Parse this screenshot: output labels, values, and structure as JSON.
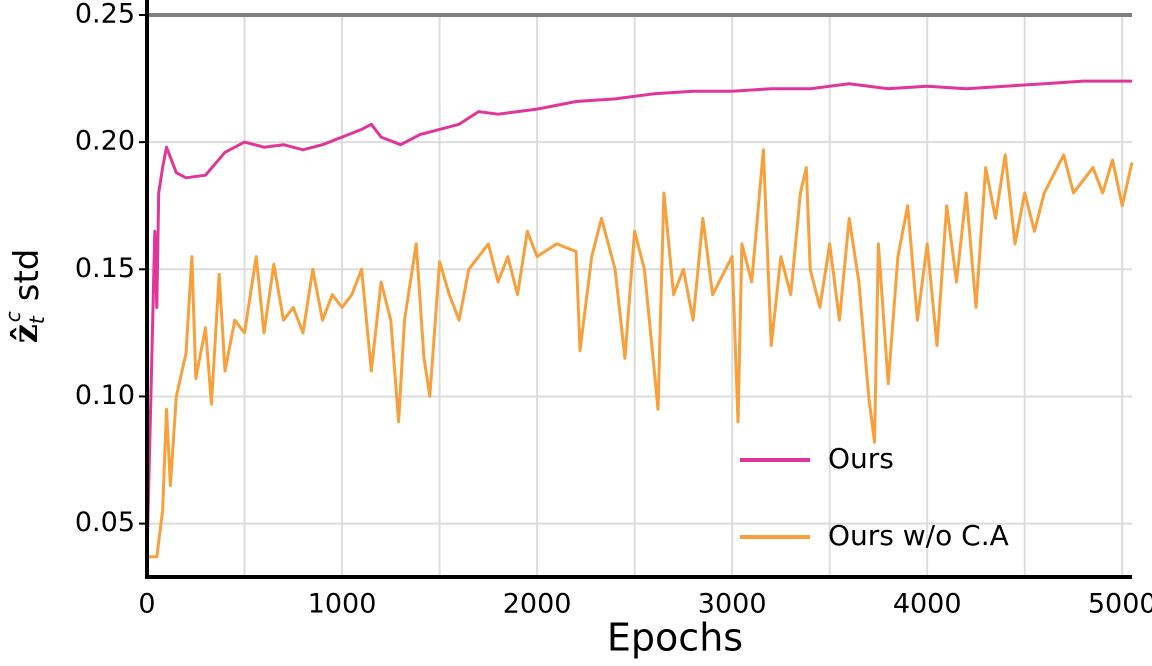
{
  "chart_data": {
    "type": "line",
    "x_label": "Epochs",
    "y_label": {
      "symbol": "ẑ",
      "sub": "t",
      "sup": "c",
      "text": "std"
    },
    "xlim": [
      0,
      5050
    ],
    "ylim": [
      0.029,
      0.25
    ],
    "xticks": [
      0,
      1000,
      2000,
      3000,
      4000,
      5000
    ],
    "x_minor_ticks": [
      500,
      1500,
      2500,
      3500,
      4500
    ],
    "yticks": [
      0.05,
      0.1,
      0.15,
      0.2,
      0.25
    ],
    "ytick_labels": [
      "0.05",
      "0.10",
      "0.15",
      "0.20",
      "0.25"
    ],
    "grid": true,
    "hline": {
      "value": 0.25,
      "color": "#808080"
    },
    "legend": "lower right",
    "series": [
      {
        "name": "Ours",
        "color": "#e0369a",
        "x": [
          0,
          20,
          40,
          50,
          60,
          80,
          100,
          150,
          200,
          300,
          400,
          500,
          600,
          700,
          800,
          900,
          1000,
          1100,
          1150,
          1200,
          1300,
          1400,
          1500,
          1600,
          1700,
          1800,
          1900,
          2000,
          2200,
          2400,
          2600,
          2800,
          3000,
          3200,
          3400,
          3600,
          3800,
          4000,
          4200,
          4400,
          4600,
          4800,
          5000,
          5050
        ],
        "values": [
          0.037,
          0.1,
          0.165,
          0.135,
          0.18,
          0.19,
          0.198,
          0.188,
          0.186,
          0.187,
          0.196,
          0.2,
          0.198,
          0.199,
          0.197,
          0.199,
          0.202,
          0.205,
          0.207,
          0.202,
          0.199,
          0.203,
          0.205,
          0.207,
          0.212,
          0.211,
          0.212,
          0.213,
          0.216,
          0.217,
          0.219,
          0.22,
          0.22,
          0.221,
          0.221,
          0.223,
          0.221,
          0.222,
          0.221,
          0.222,
          0.223,
          0.224,
          0.224,
          0.224
        ]
      },
      {
        "name": "Ours w/o C.A",
        "color": "#f7a03c",
        "x": [
          0,
          50,
          80,
          100,
          120,
          150,
          200,
          230,
          250,
          300,
          330,
          370,
          400,
          450,
          500,
          560,
          600,
          650,
          700,
          750,
          800,
          850,
          900,
          950,
          1000,
          1050,
          1100,
          1150,
          1200,
          1250,
          1290,
          1320,
          1380,
          1420,
          1450,
          1500,
          1550,
          1600,
          1650,
          1700,
          1750,
          1800,
          1850,
          1900,
          1950,
          2000,
          2100,
          2200,
          2220,
          2280,
          2330,
          2400,
          2450,
          2500,
          2550,
          2620,
          2650,
          2700,
          2750,
          2800,
          2850,
          2900,
          3000,
          3030,
          3050,
          3100,
          3160,
          3200,
          3250,
          3300,
          3350,
          3380,
          3400,
          3450,
          3500,
          3550,
          3600,
          3650,
          3700,
          3730,
          3750,
          3800,
          3850,
          3900,
          3950,
          4000,
          4050,
          4100,
          4150,
          4200,
          4250,
          4300,
          4350,
          4400,
          4450,
          4500,
          4550,
          4600,
          4700,
          4750,
          4800,
          4850,
          4900,
          4950,
          5000,
          5050
        ],
        "values": [
          0.037,
          0.037,
          0.055,
          0.095,
          0.065,
          0.1,
          0.117,
          0.155,
          0.107,
          0.127,
          0.097,
          0.148,
          0.11,
          0.13,
          0.125,
          0.155,
          0.125,
          0.152,
          0.13,
          0.135,
          0.125,
          0.15,
          0.13,
          0.14,
          0.135,
          0.14,
          0.15,
          0.11,
          0.145,
          0.13,
          0.09,
          0.13,
          0.16,
          0.115,
          0.1,
          0.153,
          0.14,
          0.13,
          0.15,
          0.155,
          0.16,
          0.145,
          0.155,
          0.14,
          0.165,
          0.155,
          0.16,
          0.157,
          0.118,
          0.155,
          0.17,
          0.15,
          0.115,
          0.165,
          0.15,
          0.095,
          0.18,
          0.14,
          0.15,
          0.13,
          0.17,
          0.14,
          0.155,
          0.09,
          0.16,
          0.145,
          0.197,
          0.12,
          0.155,
          0.14,
          0.18,
          0.19,
          0.15,
          0.135,
          0.16,
          0.13,
          0.17,
          0.145,
          0.1,
          0.082,
          0.16,
          0.105,
          0.155,
          0.175,
          0.13,
          0.16,
          0.12,
          0.175,
          0.145,
          0.18,
          0.135,
          0.19,
          0.17,
          0.195,
          0.16,
          0.18,
          0.165,
          0.18,
          0.195,
          0.18,
          0.185,
          0.19,
          0.18,
          0.193,
          0.175,
          0.192
        ]
      }
    ]
  }
}
